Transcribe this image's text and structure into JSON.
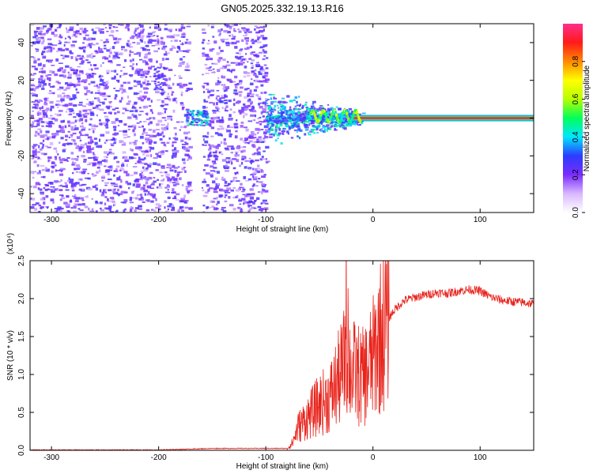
{
  "figure": {
    "title": "GN05.2025.332.19.13.R16"
  },
  "chart_data": [
    {
      "type": "heatmap",
      "xlabel": "Height of straight line (km)",
      "ylabel": "Frequency (Hz)",
      "xlim": [
        -320,
        150
      ],
      "ylim": [
        -50,
        50
      ],
      "xticks": [
        -300,
        -200,
        -100,
        0,
        100
      ],
      "yticks": [
        -40,
        -20,
        0,
        20,
        40
      ],
      "colorbar": {
        "label": "Normalized spectral amplitude",
        "range": [
          0,
          1
        ],
        "ticks": [
          "0.0",
          "0.2",
          "0.4",
          "0.6",
          "0.8"
        ],
        "colors": [
          "#ffffff",
          "#d9b8ff",
          "#7a2cff",
          "#2c3cff",
          "#00e6ff",
          "#00ff5a",
          "#b6ff00",
          "#ffff00",
          "#ff8a00",
          "#ff1a1a",
          "#ff2f8a"
        ]
      },
      "features": {
        "noise_region_x": [
          -320,
          -100
        ],
        "gap_x": [
          -172,
          -160
        ],
        "signal_band_center_hz": 0,
        "signal_start_x": -20
      }
    },
    {
      "type": "line",
      "xlabel": "Height of straight line (km)",
      "ylabel": "SNR (10 * v/v)",
      "multiplier": "(x10⁴)",
      "xlim": [
        -320,
        150
      ],
      "ylim": [
        0,
        2.5
      ],
      "xticks": [
        -300,
        -200,
        -100,
        0,
        100
      ],
      "yticks": [
        "0.0",
        "0.5",
        "1.0",
        "1.5",
        "2.0",
        "2.5"
      ],
      "series": [
        {
          "color": "#e8241c",
          "x": [
            -320,
            -200,
            -150,
            -100,
            -80,
            -75,
            -70,
            -60,
            -50,
            -40,
            -30,
            -25,
            -20,
            -15,
            -10,
            -5,
            0,
            5,
            10,
            15,
            20,
            25,
            30,
            40,
            50,
            60,
            70,
            80,
            90,
            100,
            110,
            120,
            130,
            140,
            150
          ],
          "y": [
            0.0,
            0.0,
            0.02,
            0.02,
            0.02,
            0.1,
            0.3,
            0.45,
            0.6,
            0.7,
            1.0,
            1.2,
            1.05,
            1.0,
            0.95,
            1.05,
            1.2,
            1.45,
            1.6,
            1.75,
            1.85,
            1.92,
            1.98,
            2.02,
            2.05,
            2.08,
            2.07,
            2.1,
            2.12,
            2.1,
            2.02,
            1.98,
            1.96,
            1.95,
            1.93
          ]
        }
      ]
    }
  ]
}
